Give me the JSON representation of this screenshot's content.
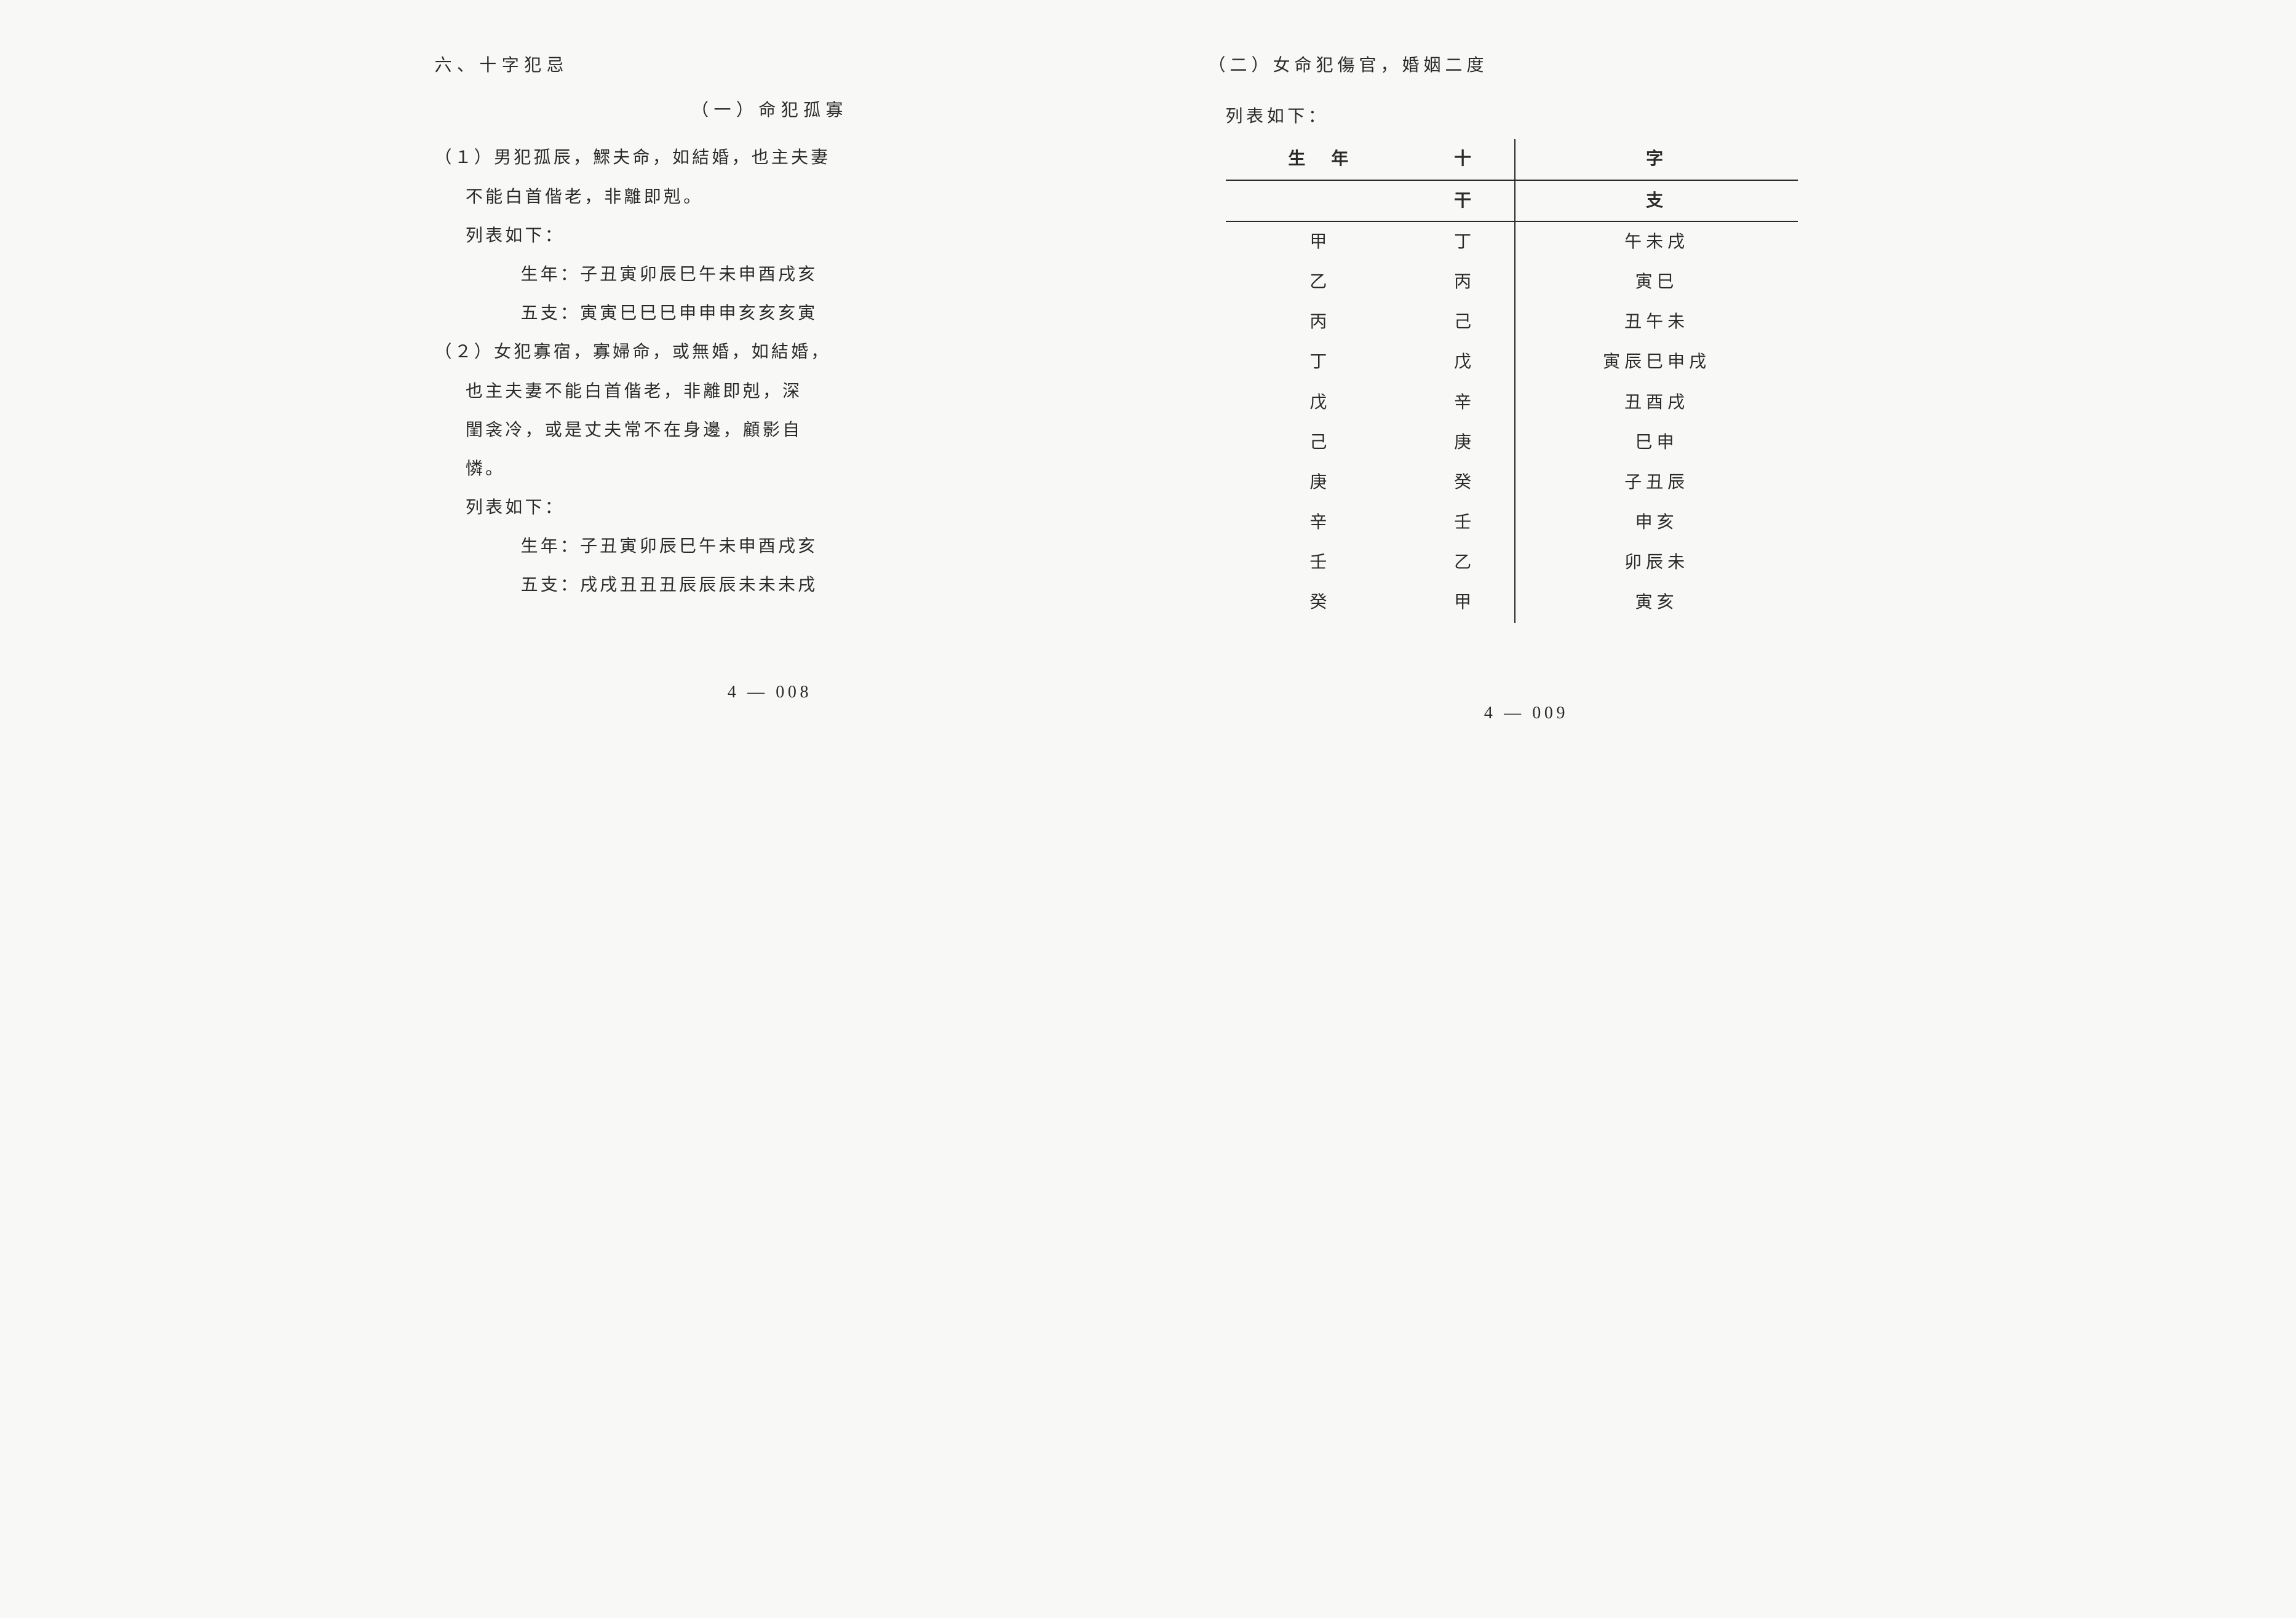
{
  "left": {
    "section_title": "六、十字犯忌",
    "sub_title": "（一）命犯孤寡",
    "item1_head": "（１）男犯孤辰，鰥夫命，如結婚，也主夫妻",
    "item1_line2": "不能白首偕老，非離即剋。",
    "list_intro1": "列表如下：",
    "row1a": "生年：子丑寅卯辰巳午未申酉戌亥",
    "row1b": "五支：寅寅巳巳巳申申申亥亥亥寅",
    "item2_head": "（２）女犯寡宿，寡婦命，或無婚，如結婚，",
    "item2_line2": "也主夫妻不能白首偕老，非離即剋，深",
    "item2_line3": "閨衾冷，或是丈夫常不在身邊，顧影自",
    "item2_line4": "憐。",
    "list_intro2": "列表如下：",
    "row2a": "生年：子丑寅卯辰巳午未申酉戌亥",
    "row2b": "五支：戌戌丑丑丑辰辰辰未未未戌",
    "page_num": "4 — 008"
  },
  "right": {
    "title": "（二）女命犯傷官，婚姻二度",
    "list_intro": "列表如下：",
    "table": {
      "head1": {
        "c1": "生　年",
        "c2": "十",
        "c3": "字"
      },
      "head2": {
        "c1": "",
        "c2": "干",
        "c3": "支"
      },
      "rows": [
        {
          "c1": "甲",
          "c2": "丁",
          "c3": "午未戌"
        },
        {
          "c1": "乙",
          "c2": "丙",
          "c3": "寅巳"
        },
        {
          "c1": "丙",
          "c2": "己",
          "c3": "丑午未"
        },
        {
          "c1": "丁",
          "c2": "戊",
          "c3": "寅辰巳申戌"
        },
        {
          "c1": "戊",
          "c2": "辛",
          "c3": "丑酉戌"
        },
        {
          "c1": "己",
          "c2": "庚",
          "c3": "巳申"
        },
        {
          "c1": "庚",
          "c2": "癸",
          "c3": "子丑辰"
        },
        {
          "c1": "辛",
          "c2": "壬",
          "c3": "申亥"
        },
        {
          "c1": "壬",
          "c2": "乙",
          "c3": "卯辰未"
        },
        {
          "c1": "癸",
          "c2": "甲",
          "c3": "寅亥"
        }
      ]
    },
    "page_num": "4 — 009"
  }
}
